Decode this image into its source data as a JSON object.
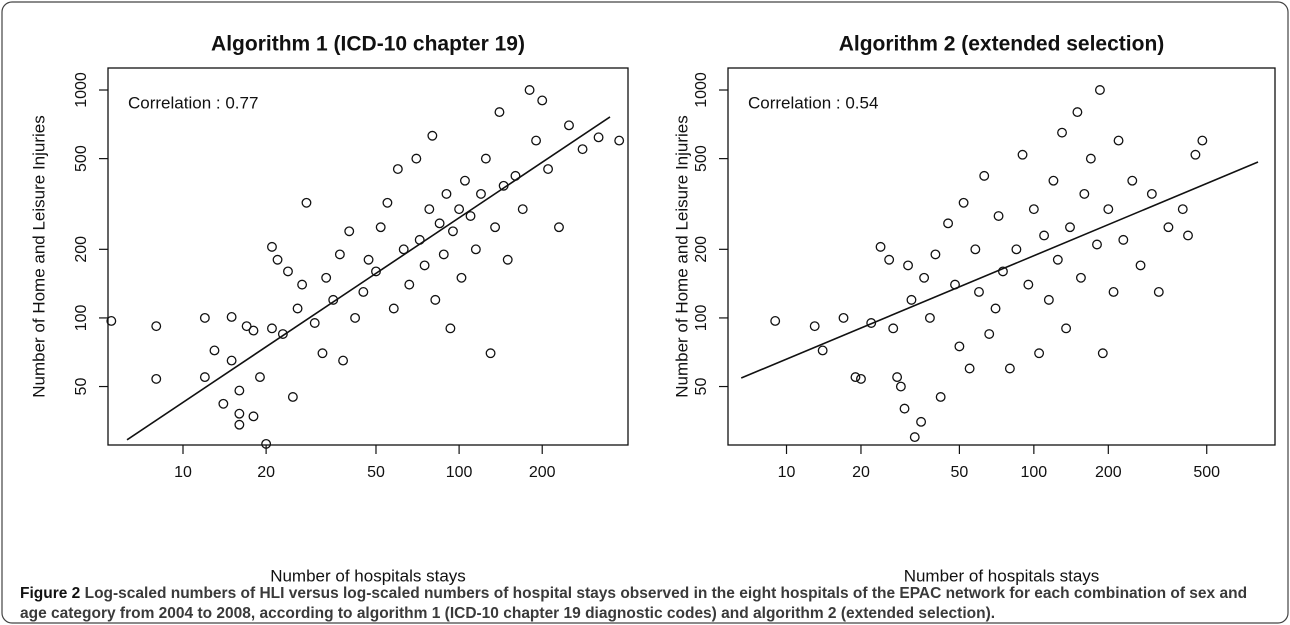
{
  "chart_data": [
    {
      "type": "scatter",
      "title": "Algorithm 1 (ICD-10 chapter 19)",
      "xlabel": "Number of hospitals stays",
      "ylabel": "Number of Home and Leisure Injuries",
      "annotation": "Correlation : 0.77",
      "log_x": true,
      "log_y": true,
      "xlim": [
        5.35,
        409
      ],
      "ylim": [
        27.7,
        1249
      ],
      "xticks": [
        10,
        20,
        50,
        100,
        200
      ],
      "yticks": [
        50,
        100,
        200,
        500,
        1000
      ],
      "x": [
        5.5,
        8,
        8,
        12,
        12,
        13,
        14,
        15,
        15,
        16,
        16,
        16,
        17,
        18,
        18,
        19,
        20,
        21,
        21,
        22,
        23,
        24,
        25,
        26,
        27,
        28,
        30,
        32,
        33,
        35,
        37,
        38,
        40,
        42,
        45,
        47,
        50,
        52,
        55,
        58,
        60,
        63,
        66,
        70,
        72,
        75,
        78,
        80,
        82,
        85,
        88,
        90,
        93,
        95,
        100,
        102,
        105,
        110,
        115,
        120,
        125,
        130,
        135,
        140,
        145,
        150,
        160,
        170,
        180,
        190,
        200,
        210,
        230,
        250,
        280,
        320,
        380
      ],
      "values": [
        97,
        92,
        54,
        100,
        55,
        72,
        42,
        101,
        65,
        48,
        38,
        34,
        92,
        88,
        37,
        55,
        28,
        205,
        90,
        180,
        85,
        160,
        45,
        110,
        140,
        320,
        95,
        70,
        150,
        120,
        190,
        65,
        240,
        100,
        130,
        180,
        160,
        250,
        320,
        110,
        450,
        200,
        140,
        500,
        220,
        170,
        300,
        630,
        120,
        260,
        190,
        350,
        90,
        240,
        300,
        150,
        400,
        280,
        200,
        350,
        500,
        70,
        250,
        800,
        380,
        180,
        420,
        300,
        1000,
        600,
        900,
        450,
        250,
        700,
        550,
        620,
        600
      ],
      "trend_x": [
        6.27,
        352
      ],
      "trend_y": [
        29.2,
        762
      ]
    },
    {
      "type": "scatter",
      "title": "Algorithm 2 (extended selection)",
      "xlabel": "Number of hospitals stays",
      "ylabel": "Number of Home and Leisure Injuries",
      "annotation": "Correlation : 0.54",
      "log_x": true,
      "log_y": true,
      "xlim": [
        5.8,
        944
      ],
      "ylim": [
        27.7,
        1249
      ],
      "xticks": [
        10,
        20,
        50,
        100,
        200,
        500
      ],
      "yticks": [
        50,
        100,
        200,
        500,
        1000
      ],
      "x": [
        9,
        13,
        14,
        17,
        19,
        20,
        22,
        24,
        26,
        27,
        28,
        29,
        30,
        31,
        32,
        33,
        35,
        36,
        38,
        40,
        42,
        45,
        48,
        50,
        52,
        55,
        58,
        60,
        63,
        66,
        70,
        72,
        75,
        80,
        85,
        90,
        95,
        100,
        105,
        110,
        115,
        120,
        125,
        130,
        135,
        140,
        150,
        155,
        160,
        170,
        180,
        185,
        190,
        200,
        210,
        220,
        230,
        250,
        270,
        300,
        320,
        350,
        400,
        420,
        450,
        480
      ],
      "values": [
        97,
        92,
        72,
        100,
        55,
        54,
        95,
        205,
        180,
        90,
        55,
        50,
        40,
        170,
        120,
        30,
        35,
        150,
        100,
        190,
        45,
        260,
        140,
        75,
        320,
        60,
        200,
        130,
        420,
        85,
        110,
        280,
        160,
        60,
        200,
        520,
        140,
        300,
        70,
        230,
        120,
        400,
        180,
        650,
        90,
        250,
        800,
        150,
        350,
        500,
        210,
        1000,
        70,
        300,
        130,
        600,
        220,
        400,
        170,
        350,
        130,
        250,
        300,
        230,
        520,
        600
      ],
      "trend_x": [
        6.56,
        806
      ],
      "trend_y": [
        54.5,
        483
      ]
    }
  ],
  "caption": {
    "label": "Figure 2",
    "text": "Log-scaled numbers of HLI versus log-scaled numbers of hospital stays observed in the eight hospitals of the EPAC network for each combination of sex and age category from 2004 to 2008, according to algorithm 1 (ICD-10 chapter 19 diagnostic codes) and algorithm 2 (extended selection)."
  }
}
